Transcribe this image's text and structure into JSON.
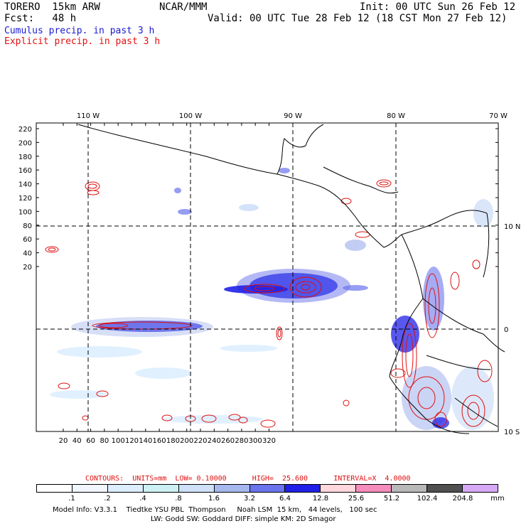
{
  "header": {
    "model": "TORERO  15km ARW",
    "org": "NCAR/MMM",
    "init": "Init: 00 UTC Sun 26 Feb 12",
    "fcst": "Fcst:   48 h",
    "valid": "Valid: 00 UTC Tue 28 Feb 12 (18 CST Mon 27 Feb 12)",
    "field1": "Cumulus precip. in past 3 h",
    "field2": "Explicit precip. in past 3 h"
  },
  "colors": {
    "field1": "#1a1ad0",
    "field2": "#e01010",
    "grid": "#000000",
    "contour": "#e01010"
  },
  "map": {
    "lon_labels": [
      "110 W",
      "100 W",
      "90 W",
      "80 W",
      "70 W"
    ],
    "lat_labels": [
      "10 N",
      "0",
      "10 S"
    ],
    "y_ticks": [
      "220",
      "200",
      "180",
      "160",
      "140",
      "120",
      "100",
      "80",
      "60",
      "40",
      "20"
    ],
    "x_ticks": [
      "20",
      "40",
      "60",
      "80",
      "100",
      "120",
      "140",
      "160",
      "180",
      "200",
      "220",
      "240",
      "260",
      "280",
      "300",
      "320"
    ]
  },
  "legend": {
    "contours_line": "CONTOURS:  UNITS=mm  LOW= 0.10000      HIGH=  25.600      INTERVAL=X  4.0000",
    "bins": [
      ".1",
      ".2",
      ".4",
      ".8",
      "1.6",
      "3.2",
      "6.4",
      "12.8",
      "25.6",
      "51.2",
      "102.4",
      "204.8"
    ],
    "unit": "mm",
    "colors": [
      "#ffffff",
      "#f2f6ff",
      "#ddeeff",
      "#ccf0f4",
      "#cfe0f8",
      "#a7b8ee",
      "#6a74ec",
      "#2020e8",
      "#ffd7dc",
      "#f58cbc",
      "#b9b9b9",
      "#505050",
      "#d6a8f6"
    ]
  },
  "footer": {
    "line1": "Model Info: V3.3.1    Tiedtke YSU PBL  Thompson     Noah LSM  15 km,   44 levels,   100 sec",
    "line2": "LW: Godd SW: Goddard DIFF: simple KM: 2D Smagor"
  }
}
